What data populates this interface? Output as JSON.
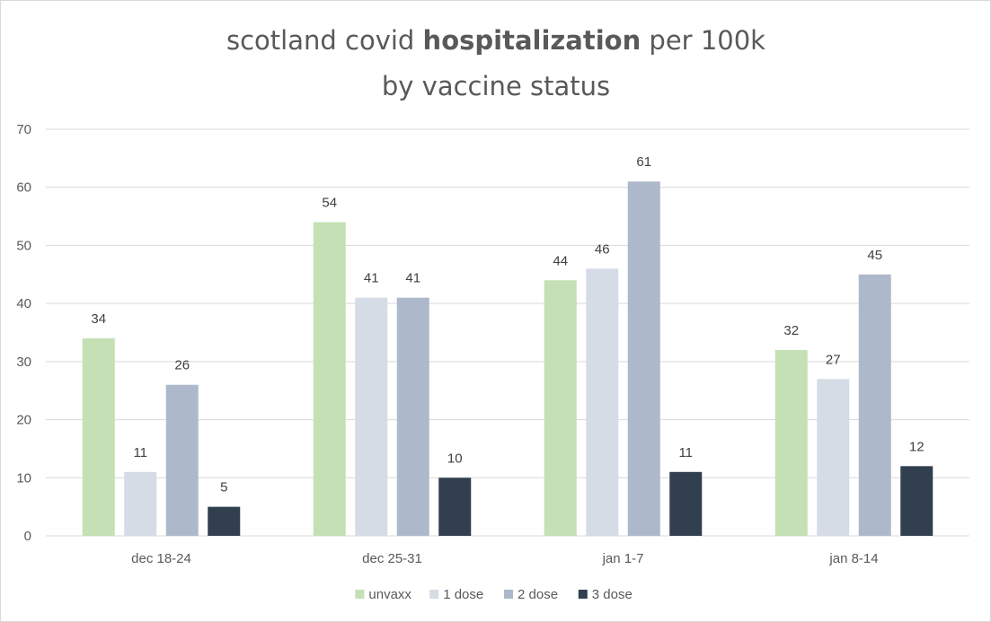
{
  "chart_data": {
    "type": "bar",
    "title_parts": {
      "line1_prefix": "scotland covid ",
      "line1_bold": "hospitalization",
      "line1_suffix": " per 100k",
      "line2": "by vaccine status"
    },
    "title": "scotland covid hospitalization per 100k by vaccine status",
    "categories": [
      "dec 18-24",
      "dec 25-31",
      "jan 1-7",
      "jan 8-14"
    ],
    "series": [
      {
        "name": "unvaxx",
        "color": "#c5e0b4",
        "values": [
          34,
          54,
          44,
          32
        ]
      },
      {
        "name": "1 dose",
        "color": "#d6dce5",
        "values": [
          11,
          41,
          46,
          27
        ]
      },
      {
        "name": "2 dose",
        "color": "#adb9ca",
        "values": [
          26,
          41,
          61,
          45
        ]
      },
      {
        "name": "3 dose",
        "color": "#323f4f",
        "values": [
          5,
          10,
          11,
          12
        ]
      }
    ],
    "ylim": [
      0,
      70
    ],
    "yticks": [
      0,
      10,
      20,
      30,
      40,
      50,
      60,
      70
    ],
    "xlabel": "",
    "ylabel": "",
    "grid": true,
    "legend_position": "bottom"
  }
}
